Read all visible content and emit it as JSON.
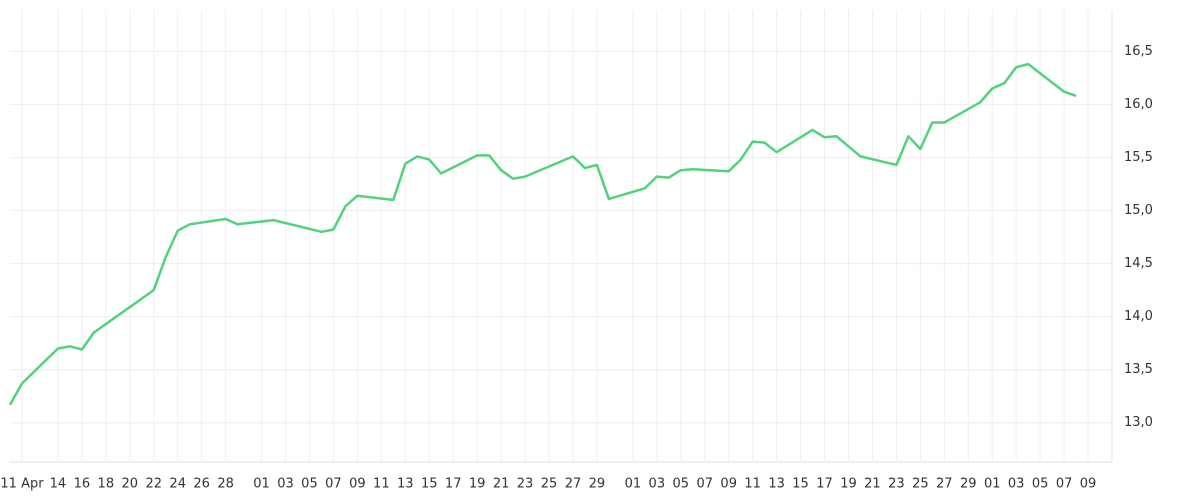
{
  "chart_data": {
    "type": "line",
    "xlim": [
      -1,
      91
    ],
    "ylim": [
      12.63,
      16.89
    ],
    "grid": true,
    "y_axis_side": "right",
    "xticks": [
      {
        "value": 0,
        "label": "11 Apr"
      },
      {
        "value": 3,
        "label": "14"
      },
      {
        "value": 5,
        "label": "16"
      },
      {
        "value": 7,
        "label": "18"
      },
      {
        "value": 9,
        "label": "20"
      },
      {
        "value": 11,
        "label": "22"
      },
      {
        "value": 13,
        "label": "24"
      },
      {
        "value": 15,
        "label": "26"
      },
      {
        "value": 17,
        "label": "28"
      },
      {
        "value": 20,
        "label": "01"
      },
      {
        "value": 22,
        "label": "03"
      },
      {
        "value": 24,
        "label": "05"
      },
      {
        "value": 26,
        "label": "07"
      },
      {
        "value": 28,
        "label": "09"
      },
      {
        "value": 30,
        "label": "11"
      },
      {
        "value": 32,
        "label": "13"
      },
      {
        "value": 34,
        "label": "15"
      },
      {
        "value": 36,
        "label": "17"
      },
      {
        "value": 38,
        "label": "19"
      },
      {
        "value": 40,
        "label": "21"
      },
      {
        "value": 42,
        "label": "23"
      },
      {
        "value": 44,
        "label": "25"
      },
      {
        "value": 46,
        "label": "27"
      },
      {
        "value": 48,
        "label": "29"
      },
      {
        "value": 51,
        "label": "01"
      },
      {
        "value": 53,
        "label": "03"
      },
      {
        "value": 55,
        "label": "05"
      },
      {
        "value": 57,
        "label": "07"
      },
      {
        "value": 59,
        "label": "09"
      },
      {
        "value": 61,
        "label": "11"
      },
      {
        "value": 63,
        "label": "13"
      },
      {
        "value": 65,
        "label": "15"
      },
      {
        "value": 67,
        "label": "17"
      },
      {
        "value": 69,
        "label": "19"
      },
      {
        "value": 71,
        "label": "21"
      },
      {
        "value": 73,
        "label": "23"
      },
      {
        "value": 75,
        "label": "25"
      },
      {
        "value": 77,
        "label": "27"
      },
      {
        "value": 79,
        "label": "29"
      },
      {
        "value": 81,
        "label": "01"
      },
      {
        "value": 83,
        "label": "03"
      },
      {
        "value": 85,
        "label": "05"
      },
      {
        "value": 87,
        "label": "07"
      },
      {
        "value": 89,
        "label": "09"
      }
    ],
    "yticks": [
      {
        "value": 13.0,
        "label": "13,0"
      },
      {
        "value": 13.5,
        "label": "13,5"
      },
      {
        "value": 14.0,
        "label": "14,0"
      },
      {
        "value": 14.5,
        "label": "14,5"
      },
      {
        "value": 15.0,
        "label": "15,0"
      },
      {
        "value": 15.5,
        "label": "15,5"
      },
      {
        "value": 16.0,
        "label": "16,0"
      },
      {
        "value": 16.5,
        "label": "16,5"
      }
    ],
    "x": [
      -1,
      0,
      3,
      4,
      5,
      6,
      11,
      12,
      13,
      14,
      17,
      18,
      21,
      25,
      26,
      27,
      28,
      31,
      32,
      33,
      34,
      35,
      38,
      39,
      40,
      41,
      42,
      46,
      47,
      48,
      49,
      52,
      53,
      54,
      55,
      56,
      59,
      60,
      61,
      62,
      63,
      66,
      67,
      68,
      70,
      73,
      74,
      75,
      76,
      77,
      80,
      81,
      82,
      83,
      84,
      87,
      88
    ],
    "series": [
      {
        "color": "#53d27d",
        "values": [
          13.17,
          13.37,
          13.7,
          13.72,
          13.69,
          13.85,
          14.25,
          14.56,
          14.81,
          14.87,
          14.92,
          14.87,
          14.91,
          14.8,
          14.82,
          15.04,
          15.14,
          15.1,
          15.44,
          15.51,
          15.48,
          15.35,
          15.52,
          15.52,
          15.38,
          15.3,
          15.32,
          15.51,
          15.4,
          15.43,
          15.11,
          15.21,
          15.32,
          15.31,
          15.38,
          15.39,
          15.37,
          15.48,
          15.65,
          15.64,
          15.55,
          15.76,
          15.69,
          15.7,
          15.51,
          15.43,
          15.7,
          15.58,
          15.83,
          15.83,
          16.02,
          16.15,
          16.2,
          16.35,
          16.38,
          16.12,
          16.08
        ]
      }
    ]
  }
}
